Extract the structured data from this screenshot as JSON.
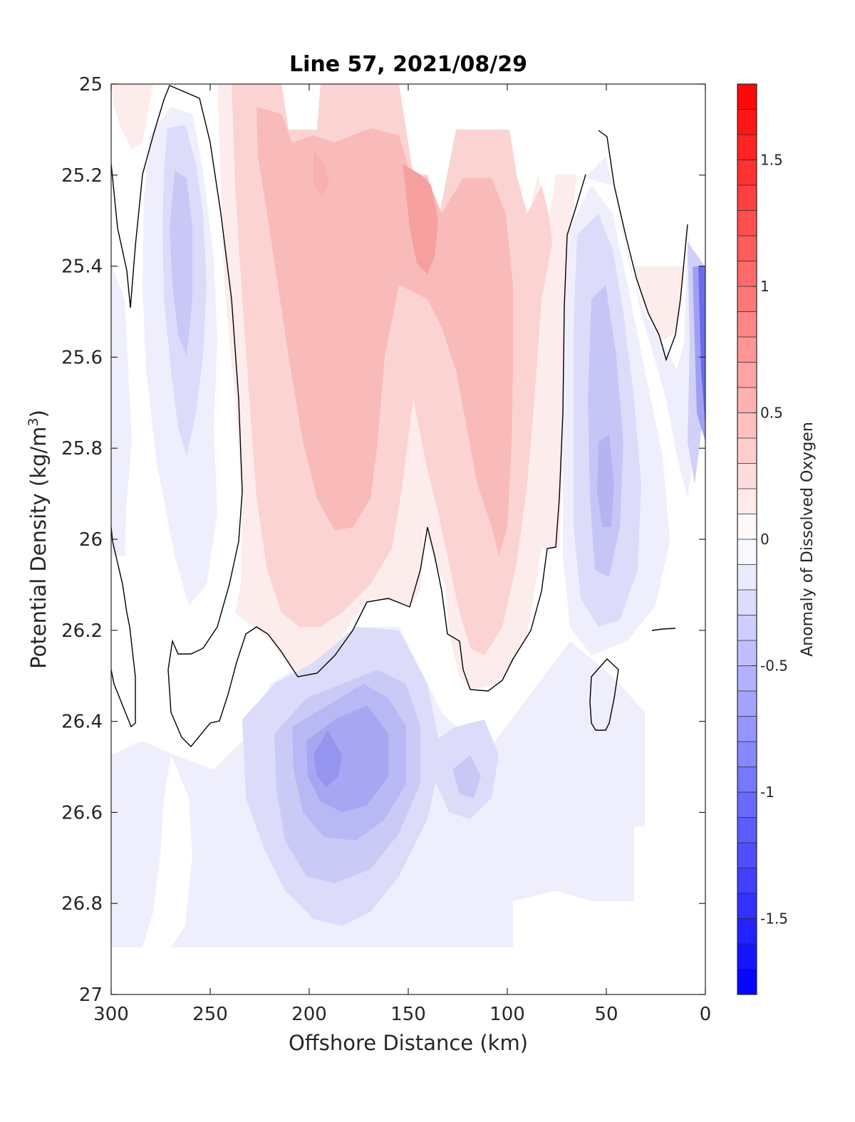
{
  "chart_data": {
    "type": "heatmap",
    "title": "Line 57, 2021/08/29",
    "xlabel": "Offshore Distance (km)",
    "ylabel_main": "Potential Density (kg/m",
    "ylabel_sup": "3",
    "ylabel_end": ")",
    "colorbar_label": "Anomaly of Dissolved Oxygen",
    "xlim": [
      300,
      0
    ],
    "ylim": [
      25,
      27
    ],
    "x_reversed": true,
    "y_reversed": true,
    "x_ticks": [
      "300",
      "250",
      "200",
      "150",
      "100",
      "50",
      "0"
    ],
    "x_tick_values": [
      300,
      250,
      200,
      150,
      100,
      50,
      0
    ],
    "y_ticks": [
      "25",
      "25.2",
      "25.4",
      "25.6",
      "25.8",
      "26",
      "26.2",
      "26.4",
      "26.6",
      "26.8",
      "27"
    ],
    "y_tick_values": [
      25,
      25.2,
      25.4,
      25.6,
      25.8,
      26,
      26.2,
      26.4,
      26.6,
      26.8,
      27
    ],
    "colorbar_range": [
      -1.8,
      1.8
    ],
    "colorbar_ticks": [
      "1.5",
      "1",
      "0.5",
      "0",
      "-0.5",
      "-1",
      "-1.5"
    ],
    "colorbar_tick_values": [
      1.5,
      1,
      0.5,
      0,
      -0.5,
      -1,
      -1.5
    ],
    "colorbar_step": 0.1,
    "colormap": {
      "negative": "#0000ff",
      "zero": "#ffffff",
      "positive": "#ff0000"
    },
    "grid": false,
    "zero_contour": true,
    "features": [
      {
        "x": 265,
        "y": 25.35,
        "value": -0.35,
        "sx": 10,
        "sy": 0.28
      },
      {
        "x": 300,
        "y": 25.85,
        "value": -0.12,
        "sx": 8,
        "sy": 0.25
      },
      {
        "x": 180,
        "y": 25.15,
        "value": 0.4,
        "sx": 35,
        "sy": 0.2
      },
      {
        "x": 175,
        "y": 25.65,
        "value": 0.4,
        "sx": 25,
        "sy": 0.3
      },
      {
        "x": 140,
        "y": 25.3,
        "value": 0.55,
        "sx": 15,
        "sy": 0.2
      },
      {
        "x": 105,
        "y": 25.7,
        "value": 0.35,
        "sx": 12,
        "sy": 0.3
      },
      {
        "x": 110,
        "y": 26.2,
        "value": 0.2,
        "sx": 8,
        "sy": 0.05
      },
      {
        "x": 30,
        "y": 25.45,
        "value": 0.12,
        "sx": 8,
        "sy": 0.05
      },
      {
        "x": 55,
        "y": 25.85,
        "value": -0.4,
        "sx": 12,
        "sy": 0.2
      },
      {
        "x": 3,
        "y": 25.65,
        "value": -1.2,
        "sx": 4,
        "sy": 0.25
      },
      {
        "x": 185,
        "y": 26.5,
        "value": -0.6,
        "sx": 18,
        "sy": 0.12
      },
      {
        "x": 130,
        "y": 26.5,
        "value": -0.2,
        "sx": 10,
        "sy": 0.1
      },
      {
        "x": 270,
        "y": 26.6,
        "value": -0.12,
        "sx": 20,
        "sy": 0.25
      }
    ]
  }
}
